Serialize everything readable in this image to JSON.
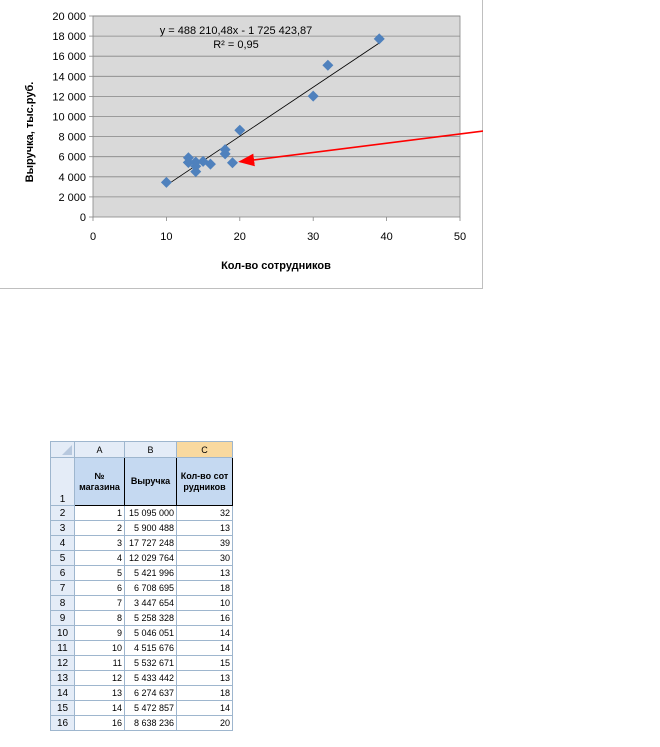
{
  "chart_data": {
    "type": "scatter",
    "xlabel": "Кол-во сотрудников",
    "ylabel": "Выручка, тыс.руб.",
    "xlim": [
      0,
      50
    ],
    "ylim": [
      0,
      20000
    ],
    "x_ticks": [
      "0",
      "10",
      "20",
      "30",
      "40",
      "50"
    ],
    "y_ticks": [
      "0",
      "2 000",
      "4 000",
      "6 000",
      "8 000",
      "10 000",
      "12 000",
      "14 000",
      "16 000",
      "18 000",
      "20 000"
    ],
    "grid": true,
    "legend": "none",
    "marker_color": "#4f81bd",
    "trendline_color": "#000000",
    "arrow_color": "#ff0000",
    "equation": "y = 488 210,48x - 1 725 423,87",
    "r_squared": "R² = 0,95",
    "points": [
      {
        "x": 32,
        "y": 15095
      },
      {
        "x": 13,
        "y": 5900
      },
      {
        "x": 39,
        "y": 17727
      },
      {
        "x": 30,
        "y": 12030
      },
      {
        "x": 13,
        "y": 5422
      },
      {
        "x": 18,
        "y": 6709
      },
      {
        "x": 10,
        "y": 3448
      },
      {
        "x": 16,
        "y": 5258
      },
      {
        "x": 14,
        "y": 5046
      },
      {
        "x": 14,
        "y": 4516
      },
      {
        "x": 15,
        "y": 5533
      },
      {
        "x": 13,
        "y": 5433
      },
      {
        "x": 18,
        "y": 6275
      },
      {
        "x": 14,
        "y": 5473
      },
      {
        "x": 19,
        "y": 5400
      },
      {
        "x": 20,
        "y": 8638
      }
    ],
    "trendline": {
      "x": [
        10,
        39
      ],
      "y": [
        3157,
        17315
      ]
    },
    "arrow": {
      "from": [
        58.5,
        9050
      ],
      "to": [
        20,
        5500
      ]
    }
  },
  "sheet": {
    "col_headers": [
      "A",
      "B",
      "C"
    ],
    "active_col": 2,
    "header_row": {
      "row_num": "1",
      "cells": [
        "№ магазина",
        "Выручка",
        "Кол-во сотрудников"
      ]
    },
    "rows": [
      {
        "n": "2",
        "a": "1",
        "b": "15 095 000",
        "c": "32"
      },
      {
        "n": "3",
        "a": "2",
        "b": "5 900 488",
        "c": "13"
      },
      {
        "n": "4",
        "a": "3",
        "b": "17 727 248",
        "c": "39"
      },
      {
        "n": "5",
        "a": "4",
        "b": "12 029 764",
        "c": "30"
      },
      {
        "n": "6",
        "a": "5",
        "b": "5 421 996",
        "c": "13"
      },
      {
        "n": "7",
        "a": "6",
        "b": "6 708 695",
        "c": "18"
      },
      {
        "n": "8",
        "a": "7",
        "b": "3 447 654",
        "c": "10"
      },
      {
        "n": "9",
        "a": "8",
        "b": "5 258 328",
        "c": "16"
      },
      {
        "n": "10",
        "a": "9",
        "b": "5 046 051",
        "c": "14"
      },
      {
        "n": "11",
        "a": "10",
        "b": "4 515 676",
        "c": "14"
      },
      {
        "n": "12",
        "a": "11",
        "b": "5 532 671",
        "c": "15"
      },
      {
        "n": "13",
        "a": "12",
        "b": "5 433 442",
        "c": "13"
      },
      {
        "n": "14",
        "a": "13",
        "b": "6 274 637",
        "c": "18"
      },
      {
        "n": "15",
        "a": "14",
        "b": "5 472 857",
        "c": "14"
      },
      {
        "n": "16",
        "a": "16",
        "b": "8 638 236",
        "c": "20"
      }
    ]
  }
}
